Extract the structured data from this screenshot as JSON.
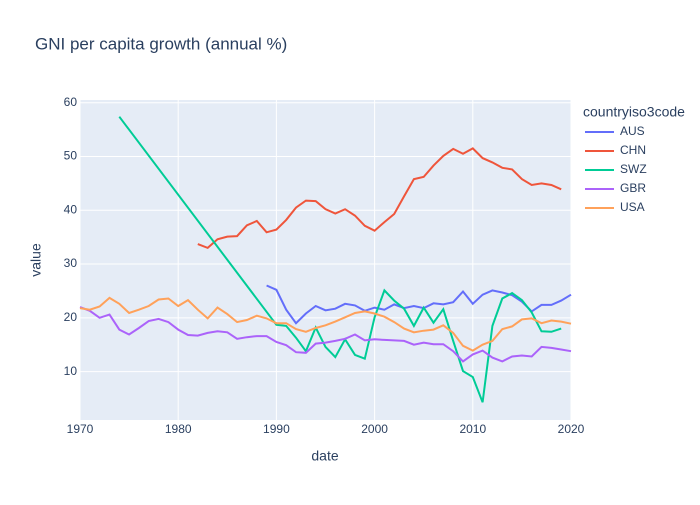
{
  "chart_data": {
    "type": "line",
    "title": "GNI per capita growth (annual %)",
    "x_label": "date",
    "y_label": "value",
    "legend_title": "countryiso3code",
    "xlim": [
      1970,
      2020
    ],
    "xticks": [
      1970,
      1980,
      1990,
      2000,
      2010,
      2020
    ],
    "ylim": [
      1,
      60.5
    ],
    "yticks": [
      10,
      20,
      30,
      40,
      50,
      60
    ],
    "grid": true,
    "legend": "right",
    "series": [
      {
        "name": "AUS",
        "color": "#636efa",
        "x": [
          1989,
          1990,
          1991,
          1992,
          1993,
          1994,
          1995,
          1996,
          1997,
          1998,
          1999,
          2000,
          2001,
          2002,
          2003,
          2004,
          2005,
          2006,
          2007,
          2008,
          2009,
          2010,
          2011,
          2012,
          2013,
          2014,
          2015,
          2016,
          2017,
          2018,
          2019,
          2020
        ],
        "values": [
          26,
          25.2,
          21.5,
          19,
          20.8,
          22.2,
          21.4,
          21.7,
          22.6,
          22.3,
          21.3,
          21.9,
          21.5,
          22.5,
          21.8,
          22.2,
          21.8,
          22.7,
          22.5,
          22.9,
          24.9,
          22.6,
          24.3,
          25.1,
          24.7,
          24.2,
          23.0,
          21.2,
          22.4,
          22.4,
          23.2,
          24.3
        ]
      },
      {
        "name": "CHN",
        "color": "#EF553B",
        "x": [
          1982,
          1983,
          1984,
          1985,
          1986,
          1987,
          1988,
          1989,
          1990,
          1991,
          1992,
          1993,
          1994,
          1995,
          1996,
          1997,
          1998,
          1999,
          2000,
          2001,
          2002,
          2003,
          2004,
          2005,
          2006,
          2007,
          2008,
          2009,
          2010,
          2011,
          2012,
          2013,
          2014,
          2015,
          2016,
          2017,
          2018,
          2019
        ],
        "values": [
          33.7,
          33.0,
          34.6,
          35.1,
          35.2,
          37.2,
          38.0,
          35.9,
          36.4,
          38.2,
          40.5,
          41.8,
          41.7,
          40.2,
          39.4,
          40.2,
          39.0,
          37.1,
          36.2,
          37.8,
          39.3,
          42.6,
          45.8,
          46.2,
          48.3,
          50.1,
          51.4,
          50.5,
          51.5,
          49.7,
          48.9,
          47.9,
          47.6,
          45.8,
          44.7,
          45.0,
          44.7,
          43.9
        ]
      },
      {
        "name": "SWZ",
        "color": "#00cc96",
        "x": [
          1974,
          1990,
          1991,
          1992,
          1993,
          1994,
          1995,
          1996,
          1997,
          1998,
          1999,
          2000,
          2001,
          2002,
          2003,
          2004,
          2005,
          2006,
          2007,
          2008,
          2009,
          2010,
          2011,
          2012,
          2013,
          2014,
          2015,
          2016,
          2017,
          2018,
          2019
        ],
        "values": [
          57.4,
          18.7,
          18.5,
          16.3,
          13.8,
          18.2,
          14.6,
          12.7,
          16.0,
          13.1,
          12.4,
          20.1,
          25.1,
          23.2,
          21.7,
          18.5,
          21.9,
          19.1,
          21.6,
          15.7,
          10.1,
          9.0,
          4.3,
          18.5,
          23.6,
          24.6,
          23.3,
          21.0,
          17.5,
          17.4,
          18.0
        ]
      },
      {
        "name": "GBR",
        "color": "#ab63fa",
        "x": [
          1970,
          1971,
          1972,
          1973,
          1974,
          1975,
          1976,
          1977,
          1978,
          1979,
          1980,
          1981,
          1982,
          1983,
          1984,
          1985,
          1986,
          1987,
          1988,
          1989,
          1990,
          1991,
          1992,
          1993,
          1994,
          1995,
          1996,
          1997,
          1998,
          1999,
          2000,
          2001,
          2002,
          2003,
          2004,
          2005,
          2006,
          2007,
          2008,
          2009,
          2010,
          2011,
          2012,
          2013,
          2014,
          2015,
          2016,
          2017,
          2018,
          2019,
          2020
        ],
        "values": [
          22.0,
          21.3,
          20.0,
          20.6,
          17.8,
          16.9,
          18.1,
          19.4,
          19.8,
          19.2,
          17.8,
          16.8,
          16.7,
          17.2,
          17.5,
          17.3,
          16.1,
          16.4,
          16.6,
          16.6,
          15.5,
          14.9,
          13.6,
          13.5,
          15.2,
          15.4,
          15.7,
          16.1,
          16.9,
          15.8,
          16.0,
          15.9,
          15.8,
          15.7,
          15.0,
          15.4,
          15.1,
          15.1,
          13.8,
          11.9,
          13.2,
          13.9,
          12.6,
          11.9,
          12.8,
          13.0,
          12.8,
          14.6,
          14.4,
          14.1,
          13.8
        ]
      },
      {
        "name": "USA",
        "color": "#FFA15A",
        "x": [
          1970,
          1971,
          1972,
          1973,
          1974,
          1975,
          1976,
          1977,
          1978,
          1979,
          1980,
          1981,
          1982,
          1983,
          1984,
          1985,
          1986,
          1987,
          1988,
          1989,
          1990,
          1991,
          1992,
          1993,
          1994,
          1995,
          1996,
          1997,
          1998,
          1999,
          2000,
          2001,
          2002,
          2003,
          2004,
          2005,
          2006,
          2007,
          2008,
          2009,
          2010,
          2011,
          2012,
          2013,
          2014,
          2015,
          2016,
          2017,
          2018,
          2019,
          2020
        ],
        "values": [
          21.8,
          21.5,
          22.1,
          23.7,
          22.6,
          20.9,
          21.5,
          22.2,
          23.4,
          23.6,
          22.2,
          23.3,
          21.5,
          19.9,
          21.9,
          20.7,
          19.2,
          19.6,
          20.4,
          19.9,
          19.0,
          19.0,
          17.9,
          17.4,
          18.1,
          18.6,
          19.3,
          20.1,
          20.9,
          21.2,
          20.8,
          20.2,
          19.2,
          18.0,
          17.3,
          17.6,
          17.8,
          18.6,
          17.2,
          14.8,
          13.9,
          15.0,
          15.7,
          17.9,
          18.4,
          19.7,
          19.9,
          19.0,
          19.5,
          19.3,
          18.9
        ]
      }
    ]
  }
}
